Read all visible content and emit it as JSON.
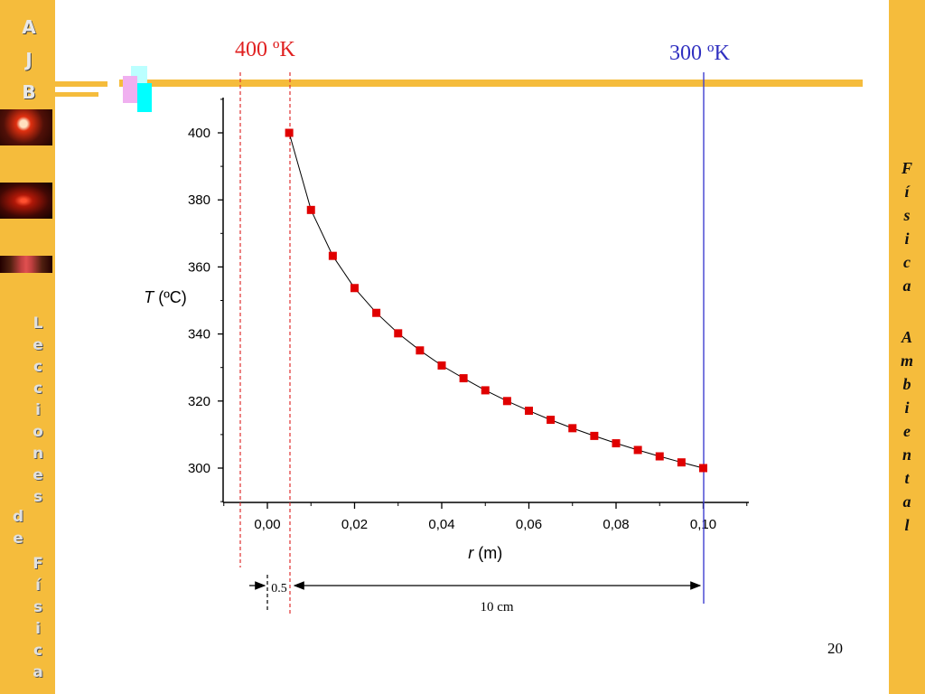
{
  "sidebar_left": {
    "ajb": [
      "A",
      "J",
      "B"
    ],
    "lecciones": [
      "L",
      "e",
      "c",
      "c",
      "i",
      "o",
      "n",
      "e",
      "s"
    ],
    "de": [
      "d",
      "e"
    ],
    "fisica": [
      "F",
      "í",
      "s",
      "i",
      "c",
      "a"
    ]
  },
  "sidebar_right": {
    "word1": [
      "F",
      "í",
      "s",
      "i",
      "c",
      "a"
    ],
    "word2": [
      "A",
      "m",
      "b",
      "i",
      "e",
      "n",
      "t",
      "a",
      "l"
    ]
  },
  "annotations": {
    "t_inner": "400 ºK",
    "t_outer": "300 ºK",
    "dim_small": "0.5",
    "dim_large": "10 cm",
    "page_number": "20"
  },
  "colors": {
    "accent_bar": "#f5bc3c",
    "marker": "#e00000",
    "inner_line": "#e03030",
    "outer_line": "#4040d0",
    "t_inner_text": "#e02020",
    "t_outer_text": "#3030c0"
  },
  "chart_data": {
    "type": "scatter",
    "xlabel_italic": "r",
    "xlabel_unit": " (m)",
    "ylabel_italic": "T",
    "ylabel_unit": " (ºC)",
    "xlim": [
      -0.01,
      0.11
    ],
    "ylim": [
      290,
      410
    ],
    "xticks": [
      0.0,
      0.02,
      0.04,
      0.06,
      0.08,
      0.1
    ],
    "xtick_labels": [
      "0,00",
      "0,02",
      "0,04",
      "0,06",
      "0,08",
      "0,10"
    ],
    "yticks": [
      300,
      320,
      340,
      360,
      380,
      400
    ],
    "ytick_labels": [
      "300",
      "320",
      "340",
      "360",
      "380",
      "400"
    ],
    "grid": false,
    "series": [
      {
        "marker": "square",
        "line": "connected",
        "x": [
          0.005,
          0.01,
          0.015,
          0.02,
          0.025,
          0.03,
          0.035,
          0.04,
          0.045,
          0.05,
          0.055,
          0.06,
          0.065,
          0.07,
          0.075,
          0.08,
          0.085,
          0.09,
          0.095,
          0.1
        ],
        "y": [
          400,
          377,
          363.3,
          353.7,
          346.3,
          340.2,
          335.1,
          330.6,
          326.8,
          323.2,
          320.0,
          317.1,
          314.4,
          311.9,
          309.6,
          307.4,
          305.4,
          303.5,
          301.7,
          300
        ]
      }
    ],
    "reference_lines_x": [
      -0.0005,
      0.005,
      0.1
    ]
  }
}
